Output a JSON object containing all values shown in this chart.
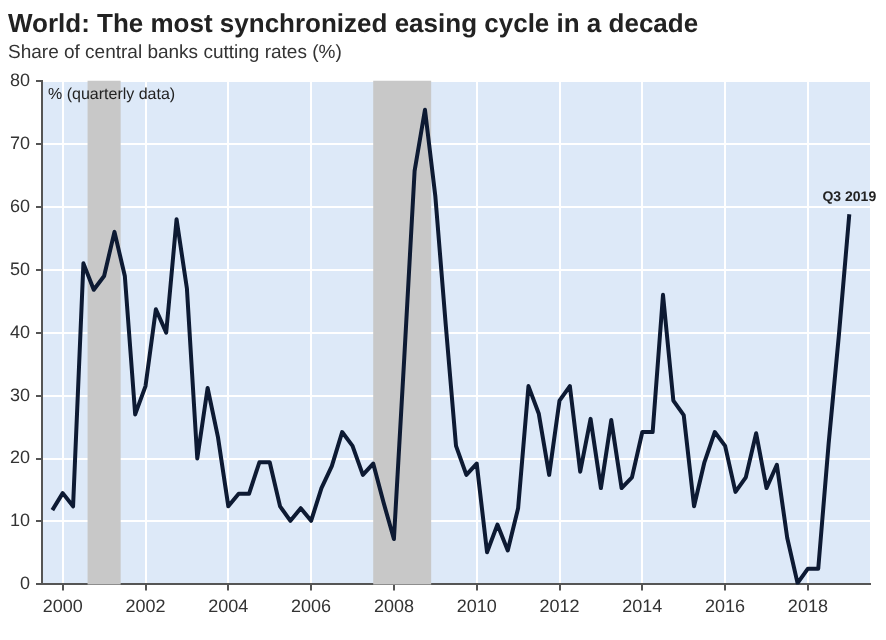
{
  "chart_data": {
    "type": "line",
    "title": "World: The most synchronized easing cycle in a decade",
    "subtitle": "Share of central banks cutting rates (%)",
    "x": [
      1999.75,
      2000,
      2000.25,
      2000.5,
      2000.75,
      2001,
      2001.25,
      2001.5,
      2001.75,
      2002,
      2002.25,
      2002.5,
      2002.75,
      2003,
      2003.25,
      2003.5,
      2003.75,
      2004,
      2004.25,
      2004.5,
      2004.75,
      2005,
      2005.25,
      2005.5,
      2005.75,
      2006,
      2006.25,
      2006.5,
      2006.75,
      2007,
      2007.25,
      2007.5,
      2007.75,
      2008,
      2008.25,
      2008.5,
      2008.75,
      2009,
      2009.25,
      2009.5,
      2009.75,
      2010,
      2010.25,
      2010.5,
      2010.75,
      2011,
      2011.25,
      2011.5,
      2011.75,
      2012,
      2012.25,
      2012.5,
      2012.75,
      2013,
      2013.25,
      2013.5,
      2013.75,
      2014,
      2014.25,
      2014.5,
      2014.75,
      2015,
      2015.25,
      2015.5,
      2015.75,
      2016,
      2016.25,
      2016.5,
      2016.75,
      2017,
      2017.25,
      2017.5,
      2017.75,
      2018,
      2018.25,
      2018.5,
      2018.75,
      2019
    ],
    "series": [
      {
        "color": "#0d1a33",
        "values": [
          11.8,
          14.5,
          12.4,
          51,
          46.8,
          49,
          56,
          49,
          27,
          31.5,
          43.7,
          40,
          58,
          47,
          20,
          31.2,
          23.4,
          12.4,
          14.4,
          14.4,
          19.4,
          19.4,
          12.4,
          10.1,
          12.1,
          10.1,
          15.3,
          18.8,
          24.2,
          22,
          17.4,
          19.2,
          13,
          7.2,
          36,
          65.7,
          75.4,
          61.7,
          41.4,
          22,
          17.4,
          19.2,
          5.1,
          9.5,
          5.4,
          12.1,
          31.5,
          27.1,
          17.4,
          29.2,
          31.5,
          17.9,
          26.3,
          15.3,
          26.1,
          15.3,
          17,
          24.2,
          24.2,
          46,
          29.2,
          26.9,
          12.4,
          19.4,
          24.2,
          22,
          14.7,
          17,
          24,
          15.3,
          19,
          7.4,
          0.2,
          2.5,
          2.5,
          22.3,
          39.7,
          58.8
        ]
      }
    ],
    "xlim": [
      1999.5,
      2019.5
    ],
    "xticks": [
      2000,
      2002,
      2004,
      2006,
      2008,
      2010,
      2012,
      2014,
      2016,
      2018
    ],
    "ylim": [
      0,
      80
    ],
    "yticks": [
      0,
      10,
      20,
      30,
      40,
      50,
      60,
      70,
      80
    ],
    "grid": true,
    "marker": "none",
    "line_style": "solid",
    "bands": [
      {
        "axis": "x",
        "from": 2000.6,
        "to": 2001.4,
        "color": "#c8c8c8"
      },
      {
        "axis": "x",
        "from": 2007.5,
        "to": 2008.9,
        "color": "#c8c8c8"
      }
    ],
    "annotations": [
      "% (quarterly data)",
      {
        "text": "Q3 2019",
        "x": 2019,
        "y": 58.8
      }
    ]
  }
}
